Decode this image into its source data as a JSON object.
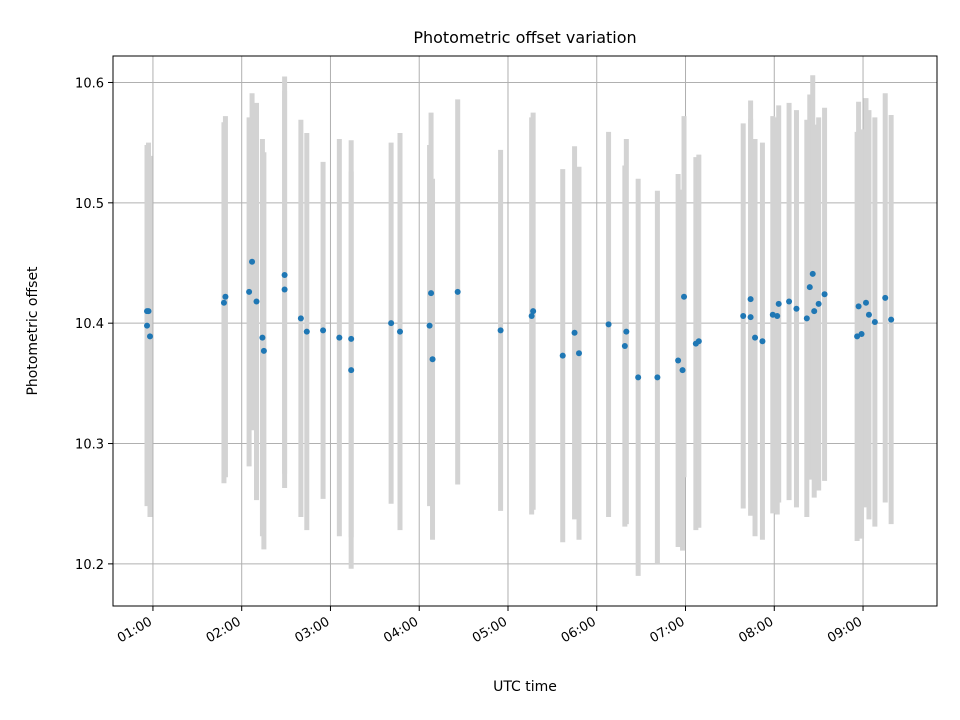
{
  "chart_data": {
    "type": "scatter",
    "title": "Photometric offset variation",
    "xlabel": "UTC time",
    "ylabel": "Photometric offset",
    "x_ticks": [
      "01:00",
      "02:00",
      "03:00",
      "04:00",
      "05:00",
      "06:00",
      "07:00",
      "08:00",
      "09:00"
    ],
    "y_ticks": [
      "10.2",
      "10.3",
      "10.4",
      "10.5",
      "10.6"
    ],
    "xlim": [
      "00:33",
      "09:50"
    ],
    "ylim": [
      10.165,
      10.622
    ],
    "grid": true,
    "colors": {
      "point": "#1f77b4",
      "errorbar": "#d3d3d3",
      "grid": "#b0b0b0"
    },
    "series": [
      {
        "x": [
          "00:56",
          "00:56",
          "00:58",
          "00:57",
          "01:48",
          "01:49",
          "02:05",
          "02:07",
          "02:10",
          "02:14",
          "02:15",
          "02:29",
          "02:29",
          "02:40",
          "02:44",
          "02:55",
          "03:06",
          "03:14",
          "03:14",
          "03:41",
          "03:47",
          "04:07",
          "04:08",
          "04:09",
          "04:26",
          "04:55",
          "05:16",
          "05:17",
          "05:37",
          "05:45",
          "05:48",
          "06:08",
          "06:19",
          "06:20",
          "06:28",
          "06:41",
          "06:55",
          "06:59",
          "06:58",
          "07:07",
          "07:09",
          "07:39",
          "07:44",
          "07:44",
          "07:47",
          "07:52",
          "07:59",
          "08:02",
          "08:03",
          "08:10",
          "08:15",
          "08:22",
          "08:24",
          "08:26",
          "08:27",
          "08:30",
          "08:34",
          "08:56",
          "08:57",
          "08:59",
          "09:02",
          "09:04",
          "09:08",
          "09:15",
          "09:19"
        ],
        "y": [
          10.41,
          10.398,
          10.389,
          10.41,
          10.417,
          10.422,
          10.426,
          10.451,
          10.418,
          10.388,
          10.377,
          10.44,
          10.428,
          10.404,
          10.393,
          10.394,
          10.388,
          10.387,
          10.361,
          10.4,
          10.393,
          10.398,
          10.425,
          10.37,
          10.426,
          10.394,
          10.406,
          10.41,
          10.373,
          10.392,
          10.375,
          10.399,
          10.381,
          10.393,
          10.355,
          10.355,
          10.369,
          10.422,
          10.361,
          10.383,
          10.385,
          10.406,
          10.405,
          10.42,
          10.388,
          10.385,
          10.407,
          10.406,
          10.416,
          10.418,
          10.412,
          10.404,
          10.43,
          10.441,
          10.41,
          10.416,
          10.424,
          10.389,
          10.414,
          10.391,
          10.417,
          10.407,
          10.401,
          10.421,
          10.403
        ],
        "err": [
          0.135,
          0.15,
          0.15,
          0.14,
          0.15,
          0.15,
          0.145,
          0.14,
          0.165,
          0.165,
          0.165,
          0.165,
          0.165,
          0.165,
          0.165,
          0.14,
          0.165,
          0.165,
          0.165,
          0.15,
          0.165,
          0.15,
          0.15,
          0.15,
          0.16,
          0.15,
          0.165,
          0.165,
          0.155,
          0.155,
          0.155,
          0.16,
          0.15,
          0.16,
          0.165,
          0.155,
          0.155,
          0.15,
          0.15,
          0.155,
          0.155,
          0.16,
          0.165,
          0.165,
          0.165,
          0.165,
          0.165,
          0.165,
          0.165,
          0.165,
          0.165,
          0.165,
          0.16,
          0.165,
          0.155,
          0.155,
          0.155,
          0.17,
          0.17,
          0.17,
          0.17,
          0.17,
          0.17,
          0.17,
          0.17
        ]
      }
    ]
  }
}
